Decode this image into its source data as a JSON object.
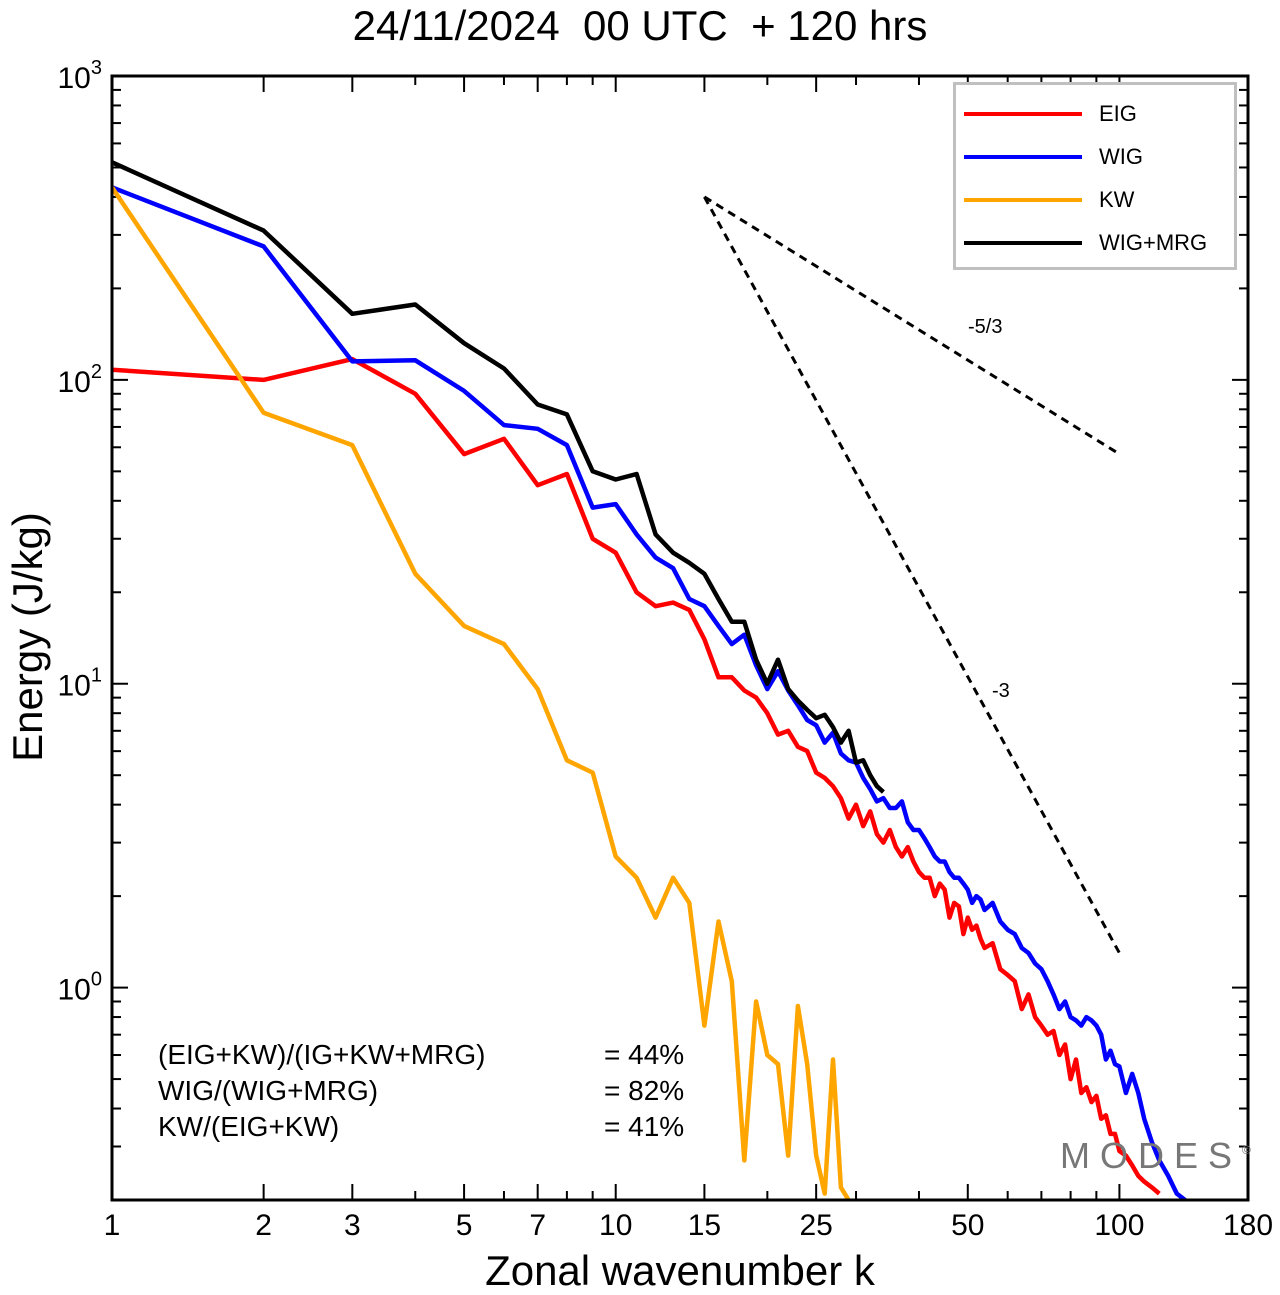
{
  "title": "24/11/2024  00 UTC  + 120 hrs",
  "chart_data": {
    "type": "line",
    "title": "24/11/2024  00 UTC  + 120 hrs",
    "xlabel": "Zonal wavenumber k",
    "ylabel": "Energy (J/kg)",
    "x_scale": "log",
    "y_scale": "log",
    "xlim": [
      1,
      180
    ],
    "ylim": [
      0.2,
      1000
    ],
    "x_ticks": [
      1,
      2,
      3,
      5,
      7,
      10,
      15,
      25,
      50,
      100,
      180
    ],
    "y_ticks": [
      {
        "value": 1,
        "base": "10",
        "exp": "0"
      },
      {
        "value": 10,
        "base": "10",
        "exp": "1"
      },
      {
        "value": 100,
        "base": "10",
        "exp": "2"
      },
      {
        "value": 1000,
        "base": "10",
        "exp": "3"
      }
    ],
    "legend_position": "top-right",
    "series": [
      {
        "name": "EIG",
        "color": "#ff0000",
        "points": [
          [
            1,
            108
          ],
          [
            2,
            100
          ],
          [
            3,
            117
          ],
          [
            4,
            90
          ],
          [
            5,
            57
          ],
          [
            6,
            64
          ],
          [
            7,
            45
          ],
          [
            8,
            49
          ],
          [
            9,
            30
          ],
          [
            10,
            27
          ],
          [
            11,
            20
          ],
          [
            12,
            18
          ],
          [
            13,
            18.5
          ],
          [
            14,
            17.5
          ],
          [
            15,
            14
          ],
          [
            16,
            10.5
          ],
          [
            17,
            10.5
          ],
          [
            18,
            9.5
          ],
          [
            19,
            9
          ],
          [
            20,
            8
          ],
          [
            21,
            6.8
          ],
          [
            22,
            7
          ],
          [
            23,
            6.2
          ],
          [
            24,
            6
          ],
          [
            25,
            5.1
          ],
          [
            26,
            4.9
          ],
          [
            27,
            4.6
          ],
          [
            28,
            4.2
          ],
          [
            29,
            3.6
          ],
          [
            30,
            4.0
          ],
          [
            31,
            3.4
          ],
          [
            32,
            3.8
          ],
          [
            33,
            3.2
          ],
          [
            34,
            3.0
          ],
          [
            35,
            3.3
          ],
          [
            36,
            2.9
          ],
          [
            37,
            2.7
          ],
          [
            38,
            2.9
          ],
          [
            39,
            2.6
          ],
          [
            40,
            2.4
          ],
          [
            41,
            2.3
          ],
          [
            42,
            2.3
          ],
          [
            43,
            2.0
          ],
          [
            44,
            2.2
          ],
          [
            45,
            2.1
          ],
          [
            46,
            1.7
          ],
          [
            47,
            1.9
          ],
          [
            48,
            1.85
          ],
          [
            49,
            1.5
          ],
          [
            50,
            1.7
          ],
          [
            51,
            1.55
          ],
          [
            52,
            1.6
          ],
          [
            53,
            1.45
          ],
          [
            54,
            1.35
          ],
          [
            56,
            1.4
          ],
          [
            58,
            1.15
          ],
          [
            60,
            1.1
          ],
          [
            62,
            1.05
          ],
          [
            64,
            0.85
          ],
          [
            66,
            0.95
          ],
          [
            68,
            0.8
          ],
          [
            70,
            0.75
          ],
          [
            72,
            0.7
          ],
          [
            74,
            0.72
          ],
          [
            76,
            0.6
          ],
          [
            78,
            0.65
          ],
          [
            80,
            0.5
          ],
          [
            82,
            0.58
          ],
          [
            84,
            0.45
          ],
          [
            86,
            0.47
          ],
          [
            88,
            0.42
          ],
          [
            90,
            0.44
          ],
          [
            92,
            0.37
          ],
          [
            94,
            0.38
          ],
          [
            96,
            0.33
          ],
          [
            98,
            0.33
          ],
          [
            100,
            0.29
          ],
          [
            103,
            0.28
          ],
          [
            106,
            0.26
          ],
          [
            109,
            0.24
          ],
          [
            112,
            0.23
          ],
          [
            116,
            0.22
          ],
          [
            120,
            0.21
          ]
        ]
      },
      {
        "name": "WIG",
        "color": "#0000ff",
        "points": [
          [
            1,
            430
          ],
          [
            2,
            275
          ],
          [
            3,
            115
          ],
          [
            4,
            116
          ],
          [
            5,
            92
          ],
          [
            6,
            71
          ],
          [
            7,
            69
          ],
          [
            8,
            61
          ],
          [
            9,
            38
          ],
          [
            10,
            39
          ],
          [
            11,
            31
          ],
          [
            12,
            26
          ],
          [
            13,
            24
          ],
          [
            14,
            19
          ],
          [
            15,
            18
          ],
          [
            16,
            15.5
          ],
          [
            17,
            13.5
          ],
          [
            18,
            14.5
          ],
          [
            19,
            11.5
          ],
          [
            20,
            9.6
          ],
          [
            21,
            11
          ],
          [
            22,
            9.5
          ],
          [
            23,
            8.5
          ],
          [
            24,
            7.6
          ],
          [
            25,
            7.3
          ],
          [
            26,
            6.4
          ],
          [
            27,
            6.9
          ],
          [
            28,
            5.9
          ],
          [
            29,
            5.6
          ],
          [
            30,
            5.5
          ],
          [
            31,
            4.9
          ],
          [
            32,
            4.5
          ],
          [
            33,
            4.1
          ],
          [
            34,
            4.2
          ],
          [
            35,
            3.9
          ],
          [
            36,
            3.9
          ],
          [
            37,
            4.1
          ],
          [
            38,
            3.5
          ],
          [
            39,
            3.3
          ],
          [
            40,
            3.3
          ],
          [
            41,
            3.1
          ],
          [
            42,
            2.9
          ],
          [
            43,
            2.7
          ],
          [
            44,
            2.6
          ],
          [
            45,
            2.6
          ],
          [
            46,
            2.4
          ],
          [
            47,
            2.3
          ],
          [
            48,
            2.3
          ],
          [
            49,
            2.2
          ],
          [
            50,
            2.1
          ],
          [
            51,
            1.9
          ],
          [
            52,
            2.0
          ],
          [
            53,
            1.95
          ],
          [
            54,
            1.8
          ],
          [
            56,
            1.9
          ],
          [
            58,
            1.65
          ],
          [
            60,
            1.55
          ],
          [
            62,
            1.5
          ],
          [
            64,
            1.35
          ],
          [
            66,
            1.3
          ],
          [
            68,
            1.2
          ],
          [
            70,
            1.15
          ],
          [
            72,
            1.05
          ],
          [
            74,
            0.95
          ],
          [
            76,
            0.85
          ],
          [
            78,
            0.9
          ],
          [
            80,
            0.8
          ],
          [
            82,
            0.78
          ],
          [
            84,
            0.75
          ],
          [
            86,
            0.8
          ],
          [
            88,
            0.78
          ],
          [
            90,
            0.75
          ],
          [
            92,
            0.7
          ],
          [
            94,
            0.58
          ],
          [
            96,
            0.62
          ],
          [
            98,
            0.56
          ],
          [
            100,
            0.55
          ],
          [
            103,
            0.45
          ],
          [
            106,
            0.52
          ],
          [
            109,
            0.45
          ],
          [
            112,
            0.37
          ],
          [
            116,
            0.31
          ],
          [
            120,
            0.27
          ],
          [
            125,
            0.24
          ],
          [
            130,
            0.21
          ],
          [
            135,
            0.2
          ]
        ]
      },
      {
        "name": "KW",
        "color": "#ffa500",
        "points": [
          [
            1,
            430
          ],
          [
            2,
            78
          ],
          [
            3,
            61
          ],
          [
            4,
            23
          ],
          [
            5,
            15.5
          ],
          [
            6,
            13.5
          ],
          [
            7,
            9.6
          ],
          [
            8,
            5.6
          ],
          [
            9,
            5.1
          ],
          [
            10,
            2.7
          ],
          [
            11,
            2.3
          ],
          [
            12,
            1.7
          ],
          [
            13,
            2.3
          ],
          [
            14,
            1.9
          ],
          [
            15,
            0.75
          ],
          [
            16,
            1.65
          ],
          [
            17,
            1.05
          ],
          [
            18,
            0.27
          ],
          [
            19,
            0.9
          ],
          [
            20,
            0.6
          ],
          [
            21,
            0.56
          ],
          [
            22,
            0.28
          ],
          [
            23,
            0.87
          ],
          [
            24,
            0.56
          ],
          [
            25,
            0.28
          ],
          [
            26,
            0.21
          ],
          [
            27,
            0.58
          ],
          [
            28,
            0.22
          ],
          [
            29,
            0.2
          ]
        ]
      },
      {
        "name": "WIG+MRG",
        "color": "#000000",
        "points": [
          [
            1,
            520
          ],
          [
            2,
            310
          ],
          [
            3,
            165
          ],
          [
            4,
            177
          ],
          [
            5,
            132
          ],
          [
            6,
            109
          ],
          [
            7,
            83
          ],
          [
            8,
            77
          ],
          [
            9,
            50
          ],
          [
            10,
            47
          ],
          [
            11,
            49
          ],
          [
            12,
            31
          ],
          [
            13,
            27
          ],
          [
            14,
            25
          ],
          [
            15,
            23
          ],
          [
            16,
            19
          ],
          [
            17,
            16
          ],
          [
            18,
            16
          ],
          [
            19,
            12
          ],
          [
            20,
            10
          ],
          [
            21,
            12
          ],
          [
            22,
            9.6
          ],
          [
            23,
            8.8
          ],
          [
            24,
            8.2
          ],
          [
            25,
            7.7
          ],
          [
            26,
            7.9
          ],
          [
            27,
            7.2
          ],
          [
            28,
            6.4
          ],
          [
            29,
            7.0
          ],
          [
            30,
            5.5
          ],
          [
            31,
            5.6
          ],
          [
            32,
            5.0
          ],
          [
            33,
            4.6
          ],
          [
            34,
            4.4
          ]
        ]
      }
    ],
    "reference_slopes": [
      {
        "label": "-5/3",
        "slope": -1.6667,
        "start": [
          15,
          400
        ],
        "end": [
          100,
          57
        ]
      },
      {
        "label": "-3",
        "slope": -3,
        "start": [
          15,
          400
        ],
        "end": [
          100,
          1.3
        ]
      }
    ]
  },
  "legend": [
    {
      "label": "EIG",
      "color": "#ff0000"
    },
    {
      "label": "WIG",
      "color": "#0000ff"
    },
    {
      "label": "KW",
      "color": "#ffa500"
    },
    {
      "label": "WIG+MRG",
      "color": "#000000"
    }
  ],
  "stats": [
    {
      "label": "(EIG+KW)/(IG+KW+MRG)",
      "value": "= 44%"
    },
    {
      "label": "WIG/(WIG+MRG)",
      "value": "= 82%"
    },
    {
      "label": "KW/(EIG+KW)",
      "value": "= 41%"
    }
  ],
  "watermark": "MODES",
  "watermark_mark": "©"
}
